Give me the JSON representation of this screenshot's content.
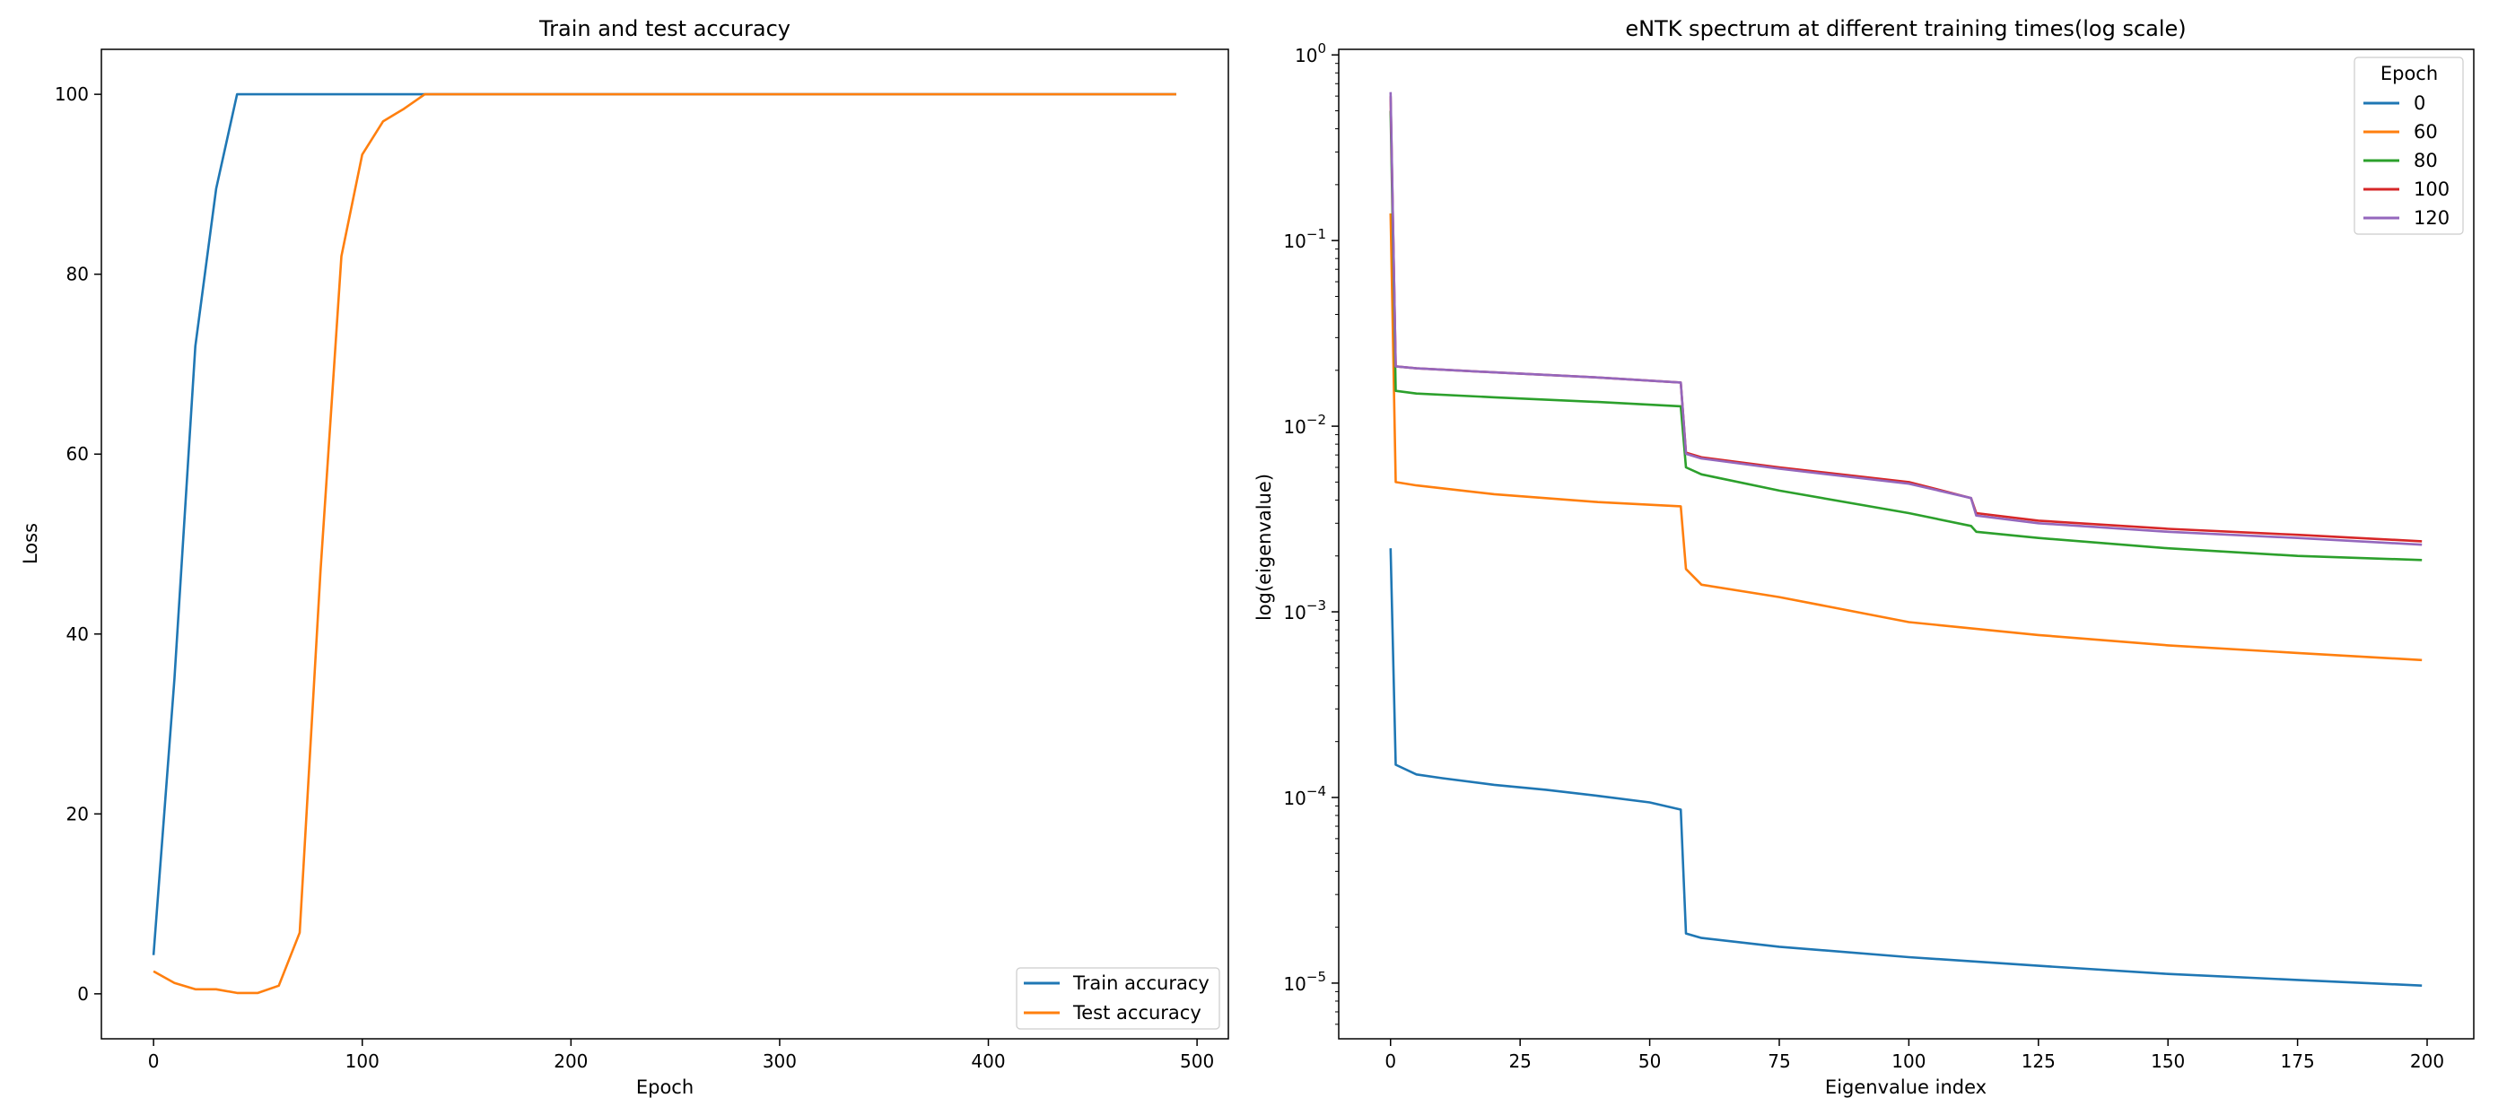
{
  "chart_data": [
    {
      "type": "line",
      "title": "Train and test accuracy",
      "xlabel": "Epoch",
      "ylabel": "Loss",
      "xlim": [
        -25,
        515
      ],
      "ylim": [
        -5,
        105
      ],
      "xticks": [
        0,
        100,
        200,
        300,
        400,
        500
      ],
      "yticks": [
        0,
        20,
        40,
        60,
        80,
        100
      ],
      "legend_position": "lower-right",
      "series": [
        {
          "name": "Train accuracy",
          "color": "#1f77b4",
          "x": [
            0,
            10,
            20,
            30,
            40,
            50,
            60,
            70,
            80,
            90,
            100,
            110,
            120,
            130,
            140,
            490
          ],
          "y": [
            4.3,
            35,
            72,
            89.5,
            100,
            100,
            100,
            100,
            100,
            100,
            100,
            100,
            100,
            100,
            100,
            100
          ]
        },
        {
          "name": "Test accuracy",
          "color": "#ff7f0e",
          "x": [
            0,
            10,
            20,
            30,
            40,
            50,
            60,
            70,
            80,
            90,
            100,
            110,
            120,
            130,
            140,
            490
          ],
          "y": [
            2.5,
            1.2,
            0.5,
            0.5,
            0.1,
            0.1,
            0.9,
            6.8,
            47,
            82,
            93.3,
            97,
            98.4,
            100,
            100,
            100
          ]
        }
      ]
    },
    {
      "type": "line",
      "title": "eNTK spectrum at different training times(log scale)",
      "xlabel": "Eigenvalue index",
      "ylabel": "log(eigenvalue)",
      "yscale": "log",
      "xlim": [
        -10,
        209
      ],
      "ylim_log10": [
        -5.3,
        0.03
      ],
      "xticks": [
        0,
        25,
        50,
        75,
        100,
        125,
        150,
        175,
        200
      ],
      "yticks_exp": [
        -5,
        -4,
        -3,
        -2,
        -1,
        0
      ],
      "legend_title": "Epoch",
      "legend_position": "top-right",
      "series": [
        {
          "name": "0",
          "color": "#1f77b4",
          "x": [
            0,
            1,
            5,
            10,
            20,
            30,
            40,
            50,
            56,
            57,
            60,
            75,
            100,
            125,
            150,
            175,
            199
          ],
          "y": [
            0.0022,
            0.00015,
            0.000133,
            0.000127,
            0.000117,
            0.00011,
            0.000102,
            9.4e-05,
            8.6e-05,
            1.85e-05,
            1.75e-05,
            1.57e-05,
            1.38e-05,
            1.24e-05,
            1.12e-05,
            1.04e-05,
            9.7e-06
          ]
        },
        {
          "name": "60",
          "color": "#ff7f0e",
          "x": [
            0,
            1,
            5,
            20,
            40,
            56,
            57,
            60,
            75,
            100,
            125,
            150,
            175,
            199
          ],
          "y": [
            0.14,
            0.005,
            0.0048,
            0.0043,
            0.0039,
            0.0037,
            0.0017,
            0.0014,
            0.0012,
            0.00088,
            0.00075,
            0.00066,
            0.0006,
            0.00055
          ]
        },
        {
          "name": "80",
          "color": "#2ca02c",
          "x": [
            0,
            1,
            5,
            20,
            40,
            56,
            57,
            60,
            75,
            100,
            112,
            113,
            125,
            150,
            175,
            199
          ],
          "y": [
            0.5,
            0.0155,
            0.015,
            0.0143,
            0.0135,
            0.0128,
            0.006,
            0.0055,
            0.0045,
            0.0034,
            0.0029,
            0.0027,
            0.0025,
            0.0022,
            0.002,
            0.0019
          ]
        },
        {
          "name": "100",
          "color": "#d62728",
          "x": [
            0,
            1,
            5,
            20,
            40,
            56,
            57,
            60,
            75,
            100,
            112,
            113,
            125,
            150,
            175,
            199
          ],
          "y": [
            0.6,
            0.021,
            0.0205,
            0.0195,
            0.0183,
            0.0172,
            0.0072,
            0.0068,
            0.006,
            0.005,
            0.0041,
            0.0034,
            0.0031,
            0.0028,
            0.0026,
            0.0024
          ]
        },
        {
          "name": "120",
          "color": "#9467bd",
          "x": [
            0,
            1,
            5,
            20,
            40,
            56,
            57,
            60,
            75,
            100,
            112,
            113,
            125,
            150,
            175,
            199
          ],
          "y": [
            0.63,
            0.021,
            0.0205,
            0.0195,
            0.0183,
            0.0172,
            0.0071,
            0.0067,
            0.0059,
            0.0049,
            0.0041,
            0.0033,
            0.003,
            0.0027,
            0.0025,
            0.0023
          ]
        }
      ]
    }
  ]
}
